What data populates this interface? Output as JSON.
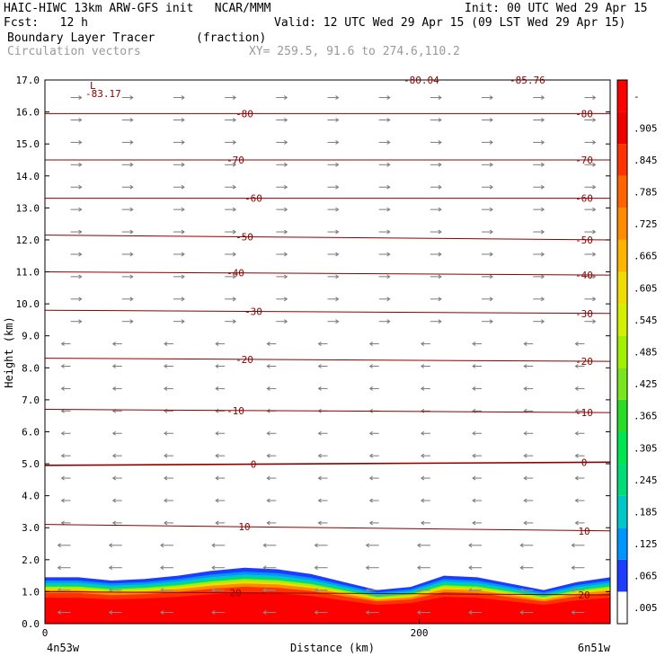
{
  "header": {
    "line1_left": "HAIC-HIWC 13km ARW-GFS init   NCAR/MMM",
    "line1_right": "Init: 00 UTC Wed 29 Apr 15",
    "line2_left": "Fcst:   12 h",
    "line2_right": "Valid: 12 UTC Wed 29 Apr 15 (09 LST Wed 29 Apr 15)",
    "line3_left": "Boundary Layer Tracer",
    "line3_mid": "(fraction)",
    "line4_left": "Circulation vectors",
    "line4_mid": "XY= 259.5, 91.6 to 274.6,110.2"
  },
  "chart_data": {
    "type": "heatmap",
    "ylabel": "Height (km)",
    "xlabel": "Distance (km)",
    "x_tick_labels": [
      "0",
      "200"
    ],
    "x_end_labels": [
      "4n53w",
      "6n51w"
    ],
    "xlim": [
      0,
      302
    ],
    "ylim": [
      0,
      17
    ],
    "y_ticks": [
      "0.0",
      "1.0",
      "2.0",
      "3.0",
      "4.0",
      "5.0",
      "6.0",
      "7.0",
      "8.0",
      "9.0",
      "10.0",
      "11.0",
      "12.0",
      "13.0",
      "14.0",
      "15.0",
      "16.0",
      "17.0"
    ],
    "colorbar": {
      "labels": [
        ".005",
        ".065",
        ".125",
        ".185",
        ".245",
        ".305",
        ".365",
        ".425",
        ".485",
        ".545",
        ".605",
        ".665",
        ".725",
        ".785",
        ".845",
        ".905",
        "-"
      ],
      "colors": [
        "#ffffff",
        "#1e3cff",
        "#0096ff",
        "#00c8c8",
        "#00dc78",
        "#00e650",
        "#28dc28",
        "#78e61e",
        "#a0f000",
        "#d2f000",
        "#f0dc00",
        "#ffb400",
        "#ff8c00",
        "#ff6400",
        "#ff3200",
        "#f00000",
        "#ff0000"
      ]
    },
    "temperature_contours": [
      {
        "label": "20",
        "y_left": 1.0,
        "y_right": 0.9
      },
      {
        "label": "10",
        "y_left": 3.1,
        "y_right": 2.9
      },
      {
        "label": "0",
        "y_left": 4.95,
        "y_right": 5.05
      },
      {
        "label": "-10",
        "y_left": 6.7,
        "y_right": 6.6
      },
      {
        "label": "-20",
        "y_left": 8.3,
        "y_right": 8.2
      },
      {
        "label": "-30",
        "y_left": 9.8,
        "y_right": 9.7
      },
      {
        "label": "-40",
        "y_left": 11.0,
        "y_right": 10.9
      },
      {
        "label": "-50",
        "y_left": 12.15,
        "y_right": 12.0
      },
      {
        "label": "-60",
        "y_left": 13.3,
        "y_right": 13.3
      },
      {
        "label": "-70",
        "y_left": 14.5,
        "y_right": 14.5
      },
      {
        "label": "-80",
        "y_left": 15.95,
        "y_right": 15.95
      }
    ],
    "extra_labels": {
      "low_marker": "L",
      "low_value": "-83.17",
      "top_mid": "-80.04",
      "top_right": "-85.76"
    },
    "vectors": {
      "direction_above_km": 9.0,
      "upper": "east",
      "lower": "west"
    },
    "tracer_top_km": [
      1.45,
      1.45,
      1.35,
      1.4,
      1.5,
      1.65,
      1.75,
      1.7,
      1.55,
      1.3,
      1.05,
      1.15,
      1.5,
      1.45,
      1.25,
      1.05,
      1.3,
      1.45
    ]
  }
}
